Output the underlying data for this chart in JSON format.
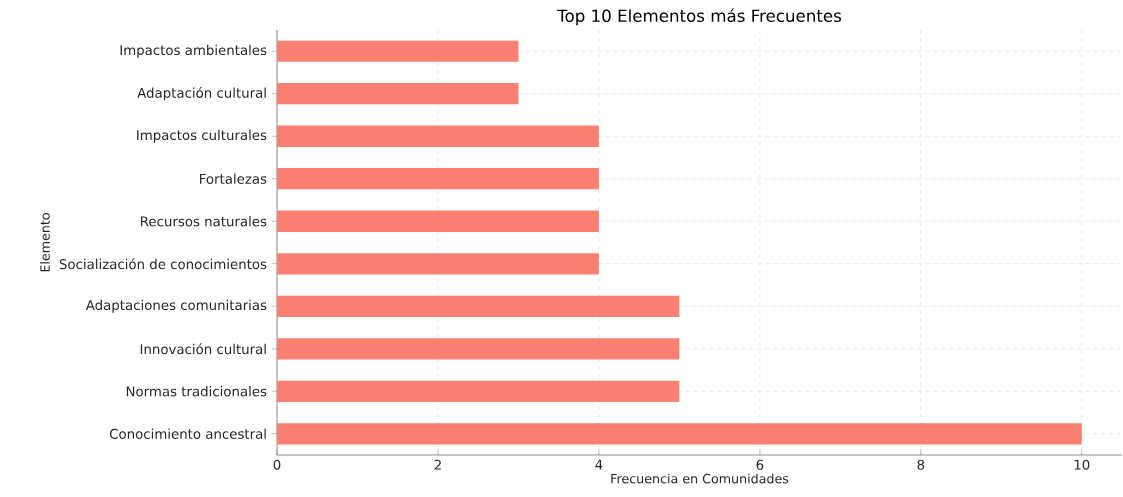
{
  "chart_data": {
    "type": "bar",
    "orientation": "horizontal",
    "title": "Top 10 Elementos más Frecuentes",
    "xlabel": "Frecuencia en Comunidades",
    "ylabel": "Elemento",
    "categories": [
      "Impactos ambientales",
      "Adaptación cultural",
      "Impactos culturales",
      "Fortalezas",
      "Recursos naturales",
      "Socialización de conocimientos",
      "Adaptaciones comunitarias",
      "Innovación cultural",
      "Normas tradicionales",
      "Conocimiento ancestral"
    ],
    "values": [
      3,
      3,
      4,
      4,
      4,
      4,
      5,
      5,
      5,
      10
    ],
    "color": "#fa8072",
    "xlim": [
      0,
      10.5
    ],
    "xticks": [
      0,
      2,
      4,
      6,
      8,
      10
    ],
    "grid": true
  }
}
